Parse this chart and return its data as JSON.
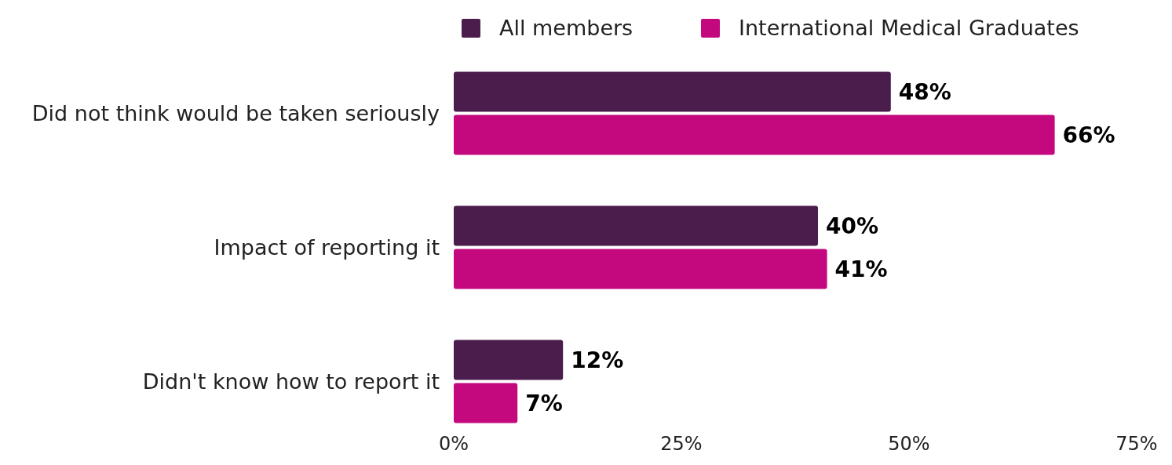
{
  "chart_data": {
    "type": "bar",
    "orientation": "horizontal",
    "categories": [
      "Did not think would be taken seriously",
      "Impact of reporting it",
      "Didn't know how to report it"
    ],
    "series": [
      {
        "name": "All members",
        "color": "#4a1d4c",
        "values": [
          48,
          40,
          12
        ]
      },
      {
        "name": "International Medical Graduates",
        "color": "#c4097e",
        "values": [
          66,
          41,
          7
        ]
      }
    ],
    "value_labels": [
      [
        "48%",
        "40%",
        "12%"
      ],
      [
        "66%",
        "41%",
        "7%"
      ]
    ],
    "xlim": [
      0,
      75
    ],
    "xticks": [
      {
        "value": 0,
        "label": "0%"
      },
      {
        "value": 25,
        "label": "25%"
      },
      {
        "value": 50,
        "label": "50%"
      },
      {
        "value": 75,
        "label": "75%"
      }
    ],
    "grid": false,
    "legend": "top"
  }
}
